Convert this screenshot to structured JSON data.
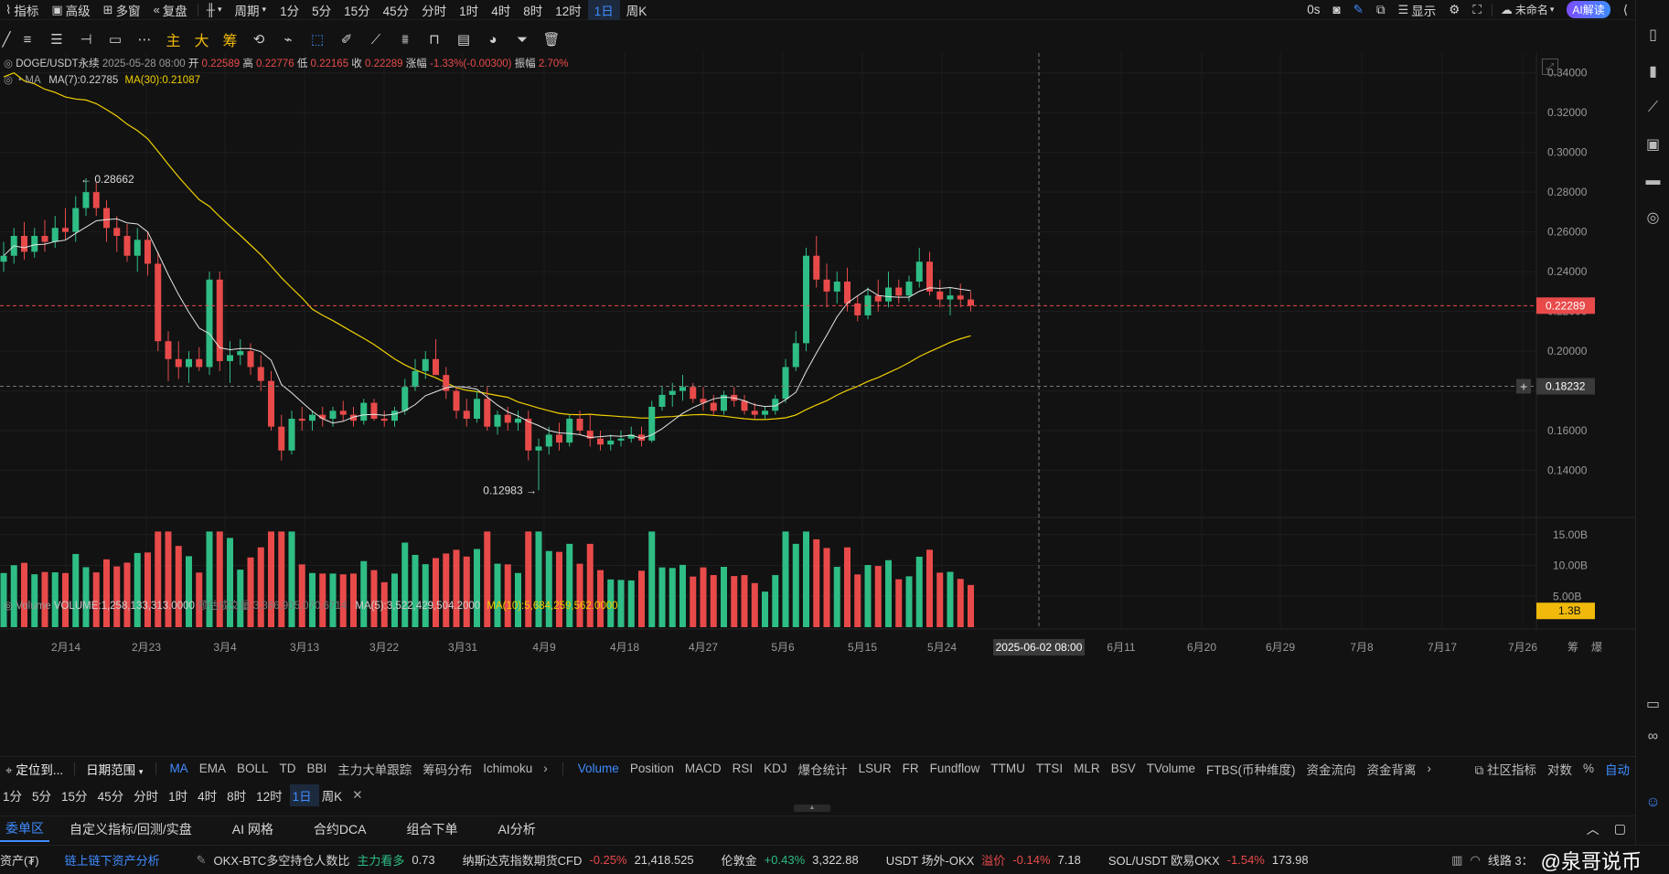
{
  "topbar": {
    "items": [
      "指标",
      "高级",
      "多窗",
      "复盘"
    ],
    "period_label": "周期",
    "timeframes": [
      "1分",
      "5分",
      "15分",
      "45分",
      "分时",
      "1时",
      "4时",
      "8时",
      "12时",
      "1日",
      "周K"
    ],
    "active_timeframe": "1日",
    "right_items": [
      "0s",
      "显示",
      "未命名",
      "AI解读"
    ]
  },
  "drawbar": {
    "cn_tools": [
      "主",
      "大",
      "筹"
    ]
  },
  "legend": {
    "symbol": "DOGE/USDT永续",
    "datetime": "2025-05-28 08:00",
    "open_label": "开",
    "open": "0.22589",
    "high_label": "高",
    "high": "0.22776",
    "low_label": "低",
    "low": "0.22165",
    "close_label": "收",
    "close": "0.22289",
    "change_label": "涨幅",
    "change": "-1.33%(-0.00300)",
    "amp_label": "振幅",
    "amp": "2.70%",
    "ma_label": "MA",
    "ma7": "MA(7):0.22785",
    "ma30": "MA(30):0.21087"
  },
  "volume_legend": {
    "label": "Volume",
    "volume": "VOLUME:1,258,133,313.0000",
    "est": "预估成交量:3,386,905,070.6714",
    "ma5": "MA(5):3,522,429,504.2000",
    "ma10": "MA(10):5,684,259,562.0000"
  },
  "price_axis": [
    "0.34000",
    "0.32000",
    "0.30000",
    "0.28000",
    "0.26000",
    "0.24000",
    "0.22000",
    "0.20000",
    "0.18000",
    "0.16000",
    "0.14000"
  ],
  "current_price": "0.22289",
  "crosshair_price": "0.18232",
  "volume_axis": [
    "15.00B",
    "10.00B",
    "5.00B"
  ],
  "current_volume": "1.3B",
  "date_axis": [
    "2月14",
    "2月23",
    "3月4",
    "3月13",
    "3月22",
    "3月31",
    "4月9",
    "4月18",
    "4月27",
    "5月6",
    "5月15",
    "5月24",
    "6月11",
    "6月20",
    "6月29",
    "7月8",
    "7月17",
    "7月26"
  ],
  "crosshair_date": "2025-06-02 08:00",
  "axis_corner": [
    "筹",
    "爆"
  ],
  "annotations": {
    "high": "0.28662",
    "low": "0.12983"
  },
  "chart_data": {
    "type": "candlestick",
    "symbol": "DOGE/USDT永续",
    "interval": "1日",
    "ylim": [
      0.12,
      0.35
    ],
    "candles_ohlc": [
      [
        0.245,
        0.255,
        0.24,
        0.248
      ],
      [
        0.248,
        0.262,
        0.244,
        0.258
      ],
      [
        0.258,
        0.265,
        0.246,
        0.25
      ],
      [
        0.25,
        0.262,
        0.247,
        0.258
      ],
      [
        0.258,
        0.266,
        0.25,
        0.255
      ],
      [
        0.255,
        0.268,
        0.252,
        0.262
      ],
      [
        0.262,
        0.272,
        0.256,
        0.26
      ],
      [
        0.26,
        0.278,
        0.255,
        0.272
      ],
      [
        0.272,
        0.287,
        0.268,
        0.28
      ],
      [
        0.28,
        0.285,
        0.268,
        0.272
      ],
      [
        0.272,
        0.276,
        0.255,
        0.262
      ],
      [
        0.262,
        0.268,
        0.25,
        0.258
      ],
      [
        0.258,
        0.264,
        0.245,
        0.248
      ],
      [
        0.248,
        0.262,
        0.24,
        0.256
      ],
      [
        0.256,
        0.26,
        0.238,
        0.244
      ],
      [
        0.244,
        0.25,
        0.2,
        0.205
      ],
      [
        0.205,
        0.21,
        0.185,
        0.196
      ],
      [
        0.196,
        0.205,
        0.186,
        0.192
      ],
      [
        0.192,
        0.2,
        0.184,
        0.196
      ],
      [
        0.196,
        0.202,
        0.19,
        0.192
      ],
      [
        0.192,
        0.24,
        0.188,
        0.236
      ],
      [
        0.236,
        0.24,
        0.19,
        0.195
      ],
      [
        0.195,
        0.205,
        0.184,
        0.198
      ],
      [
        0.198,
        0.206,
        0.193,
        0.2
      ],
      [
        0.2,
        0.204,
        0.188,
        0.192
      ],
      [
        0.192,
        0.198,
        0.18,
        0.185
      ],
      [
        0.185,
        0.19,
        0.16,
        0.162
      ],
      [
        0.162,
        0.168,
        0.145,
        0.15
      ],
      [
        0.15,
        0.17,
        0.148,
        0.166
      ],
      [
        0.166,
        0.172,
        0.16,
        0.165
      ],
      [
        0.165,
        0.17,
        0.16,
        0.168
      ],
      [
        0.168,
        0.172,
        0.162,
        0.166
      ],
      [
        0.166,
        0.172,
        0.162,
        0.17
      ],
      [
        0.17,
        0.175,
        0.165,
        0.168
      ],
      [
        0.168,
        0.172,
        0.162,
        0.165
      ],
      [
        0.165,
        0.176,
        0.163,
        0.174
      ],
      [
        0.174,
        0.176,
        0.165,
        0.166
      ],
      [
        0.166,
        0.17,
        0.162,
        0.165
      ],
      [
        0.165,
        0.172,
        0.162,
        0.17
      ],
      [
        0.17,
        0.186,
        0.168,
        0.182
      ],
      [
        0.182,
        0.196,
        0.18,
        0.19
      ],
      [
        0.19,
        0.2,
        0.186,
        0.196
      ],
      [
        0.196,
        0.206,
        0.19,
        0.188
      ],
      [
        0.188,
        0.192,
        0.176,
        0.18
      ],
      [
        0.18,
        0.182,
        0.166,
        0.17
      ],
      [
        0.17,
        0.176,
        0.162,
        0.166
      ],
      [
        0.166,
        0.18,
        0.164,
        0.176
      ],
      [
        0.176,
        0.182,
        0.16,
        0.162
      ],
      [
        0.162,
        0.17,
        0.158,
        0.168
      ],
      [
        0.168,
        0.172,
        0.16,
        0.164
      ],
      [
        0.164,
        0.17,
        0.16,
        0.166
      ],
      [
        0.166,
        0.17,
        0.145,
        0.15
      ],
      [
        0.15,
        0.156,
        0.13,
        0.152
      ],
      [
        0.152,
        0.162,
        0.148,
        0.158
      ],
      [
        0.158,
        0.164,
        0.15,
        0.154
      ],
      [
        0.154,
        0.168,
        0.152,
        0.166
      ],
      [
        0.166,
        0.17,
        0.158,
        0.16
      ],
      [
        0.16,
        0.168,
        0.152,
        0.156
      ],
      [
        0.156,
        0.16,
        0.15,
        0.153
      ],
      [
        0.153,
        0.158,
        0.15,
        0.155
      ],
      [
        0.155,
        0.16,
        0.152,
        0.156
      ],
      [
        0.156,
        0.162,
        0.154,
        0.158
      ],
      [
        0.158,
        0.162,
        0.152,
        0.155
      ],
      [
        0.155,
        0.175,
        0.154,
        0.172
      ],
      [
        0.172,
        0.182,
        0.17,
        0.178
      ],
      [
        0.178,
        0.184,
        0.172,
        0.18
      ],
      [
        0.18,
        0.188,
        0.175,
        0.182
      ],
      [
        0.182,
        0.184,
        0.174,
        0.176
      ],
      [
        0.176,
        0.182,
        0.17,
        0.174
      ],
      [
        0.174,
        0.178,
        0.168,
        0.17
      ],
      [
        0.17,
        0.18,
        0.168,
        0.178
      ],
      [
        0.178,
        0.182,
        0.172,
        0.175
      ],
      [
        0.175,
        0.178,
        0.168,
        0.17
      ],
      [
        0.17,
        0.174,
        0.166,
        0.168
      ],
      [
        0.168,
        0.172,
        0.166,
        0.17
      ],
      [
        0.17,
        0.178,
        0.168,
        0.176
      ],
      [
        0.176,
        0.196,
        0.174,
        0.192
      ],
      [
        0.192,
        0.21,
        0.19,
        0.204
      ],
      [
        0.204,
        0.252,
        0.2,
        0.248
      ],
      [
        0.248,
        0.258,
        0.232,
        0.236
      ],
      [
        0.236,
        0.244,
        0.222,
        0.23
      ],
      [
        0.23,
        0.24,
        0.224,
        0.235
      ],
      [
        0.235,
        0.242,
        0.22,
        0.224
      ],
      [
        0.224,
        0.228,
        0.215,
        0.218
      ],
      [
        0.218,
        0.232,
        0.216,
        0.228
      ],
      [
        0.228,
        0.236,
        0.22,
        0.225
      ],
      [
        0.225,
        0.24,
        0.222,
        0.232
      ],
      [
        0.232,
        0.236,
        0.224,
        0.228
      ],
      [
        0.228,
        0.238,
        0.225,
        0.235
      ],
      [
        0.235,
        0.252,
        0.232,
        0.245
      ],
      [
        0.245,
        0.25,
        0.228,
        0.23
      ],
      [
        0.23,
        0.236,
        0.222,
        0.226
      ],
      [
        0.226,
        0.232,
        0.218,
        0.228
      ],
      [
        0.228,
        0.234,
        0.222,
        0.226
      ],
      [
        0.226,
        0.23,
        0.22,
        0.223
      ]
    ],
    "ma7_color": "#e6e6e6",
    "ma30_color": "#f0d000",
    "up_color": "#2ebd85",
    "down_color": "#e84a4a",
    "volume_ylim": [
      0,
      16
    ],
    "volume_unit": "B"
  },
  "indicators_main": [
    "MA",
    "EMA",
    "BOLL",
    "TD",
    "BBI",
    "主力大单跟踪",
    "筹码分布",
    "Ichimoku"
  ],
  "indicators_sub": [
    "Volume",
    "Position",
    "MACD",
    "RSI",
    "KDJ",
    "爆仓统计",
    "LSUR",
    "FR",
    "Fundflow",
    "TTMU",
    "TTSI",
    "MLR",
    "BSV",
    "TVolume",
    "FTBS(币种维度)",
    "资金流向",
    "资金背离"
  ],
  "indbar": {
    "locate": "定位到...",
    "date_range": "日期范围",
    "community": "社区指标",
    "log": "对数",
    "percent": "%",
    "auto": "自动"
  },
  "bottom_tabs": [
    "委单区",
    "自定义指标/回测/实盘",
    "AI 网格",
    "合约DCA",
    "组合下单",
    "AI分析"
  ],
  "ticker": {
    "asset": "资产(₮)",
    "onchain": "链上链下资产分析",
    "items": [
      {
        "name": "OKX-BTC多空持仓人数比",
        "tag": "主力看多",
        "value": "0.73"
      },
      {
        "name": "纳斯达克指数期货CFD",
        "change": "-0.25%",
        "value": "21,418.525"
      },
      {
        "name": "伦敦金",
        "change": "+0.43%",
        "value": "3,322.88"
      },
      {
        "name": "USDT 场外-OKX",
        "tag": "溢价",
        "change": "-0.14%",
        "value": "7.18"
      },
      {
        "name": "SOL/USDT 欧易OKX",
        "change": "-1.54%",
        "value": "173.98"
      }
    ],
    "line": "线路 3：",
    "watermark": "@泉哥说币"
  }
}
